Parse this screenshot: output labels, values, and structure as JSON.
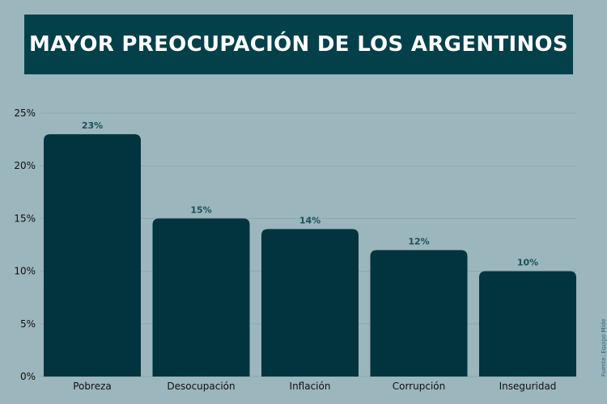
{
  "chart_data": {
    "type": "bar",
    "title": "MAYOR PREOCUPACIÓN DE LOS ARGENTINOS",
    "categories": [
      "Pobreza",
      "Desocupación",
      "Inflación",
      "Corrupción",
      "Inseguridad"
    ],
    "values": [
      23,
      15,
      14,
      12,
      10
    ],
    "data_labels": [
      "23%",
      "15%",
      "14%",
      "12%",
      "10%"
    ],
    "ylim": [
      0,
      25
    ],
    "yticks": [
      0,
      5,
      10,
      15,
      20,
      25
    ],
    "ytick_labels": [
      "0%",
      "5%",
      "10%",
      "15%",
      "20%",
      "25%"
    ],
    "grid": true,
    "source": "Fuente: Equipo Mide",
    "colors": {
      "bar": "#01343f",
      "label": "#1b505b",
      "background": "#9bb6bc",
      "title_bg": "#03404a"
    }
  }
}
